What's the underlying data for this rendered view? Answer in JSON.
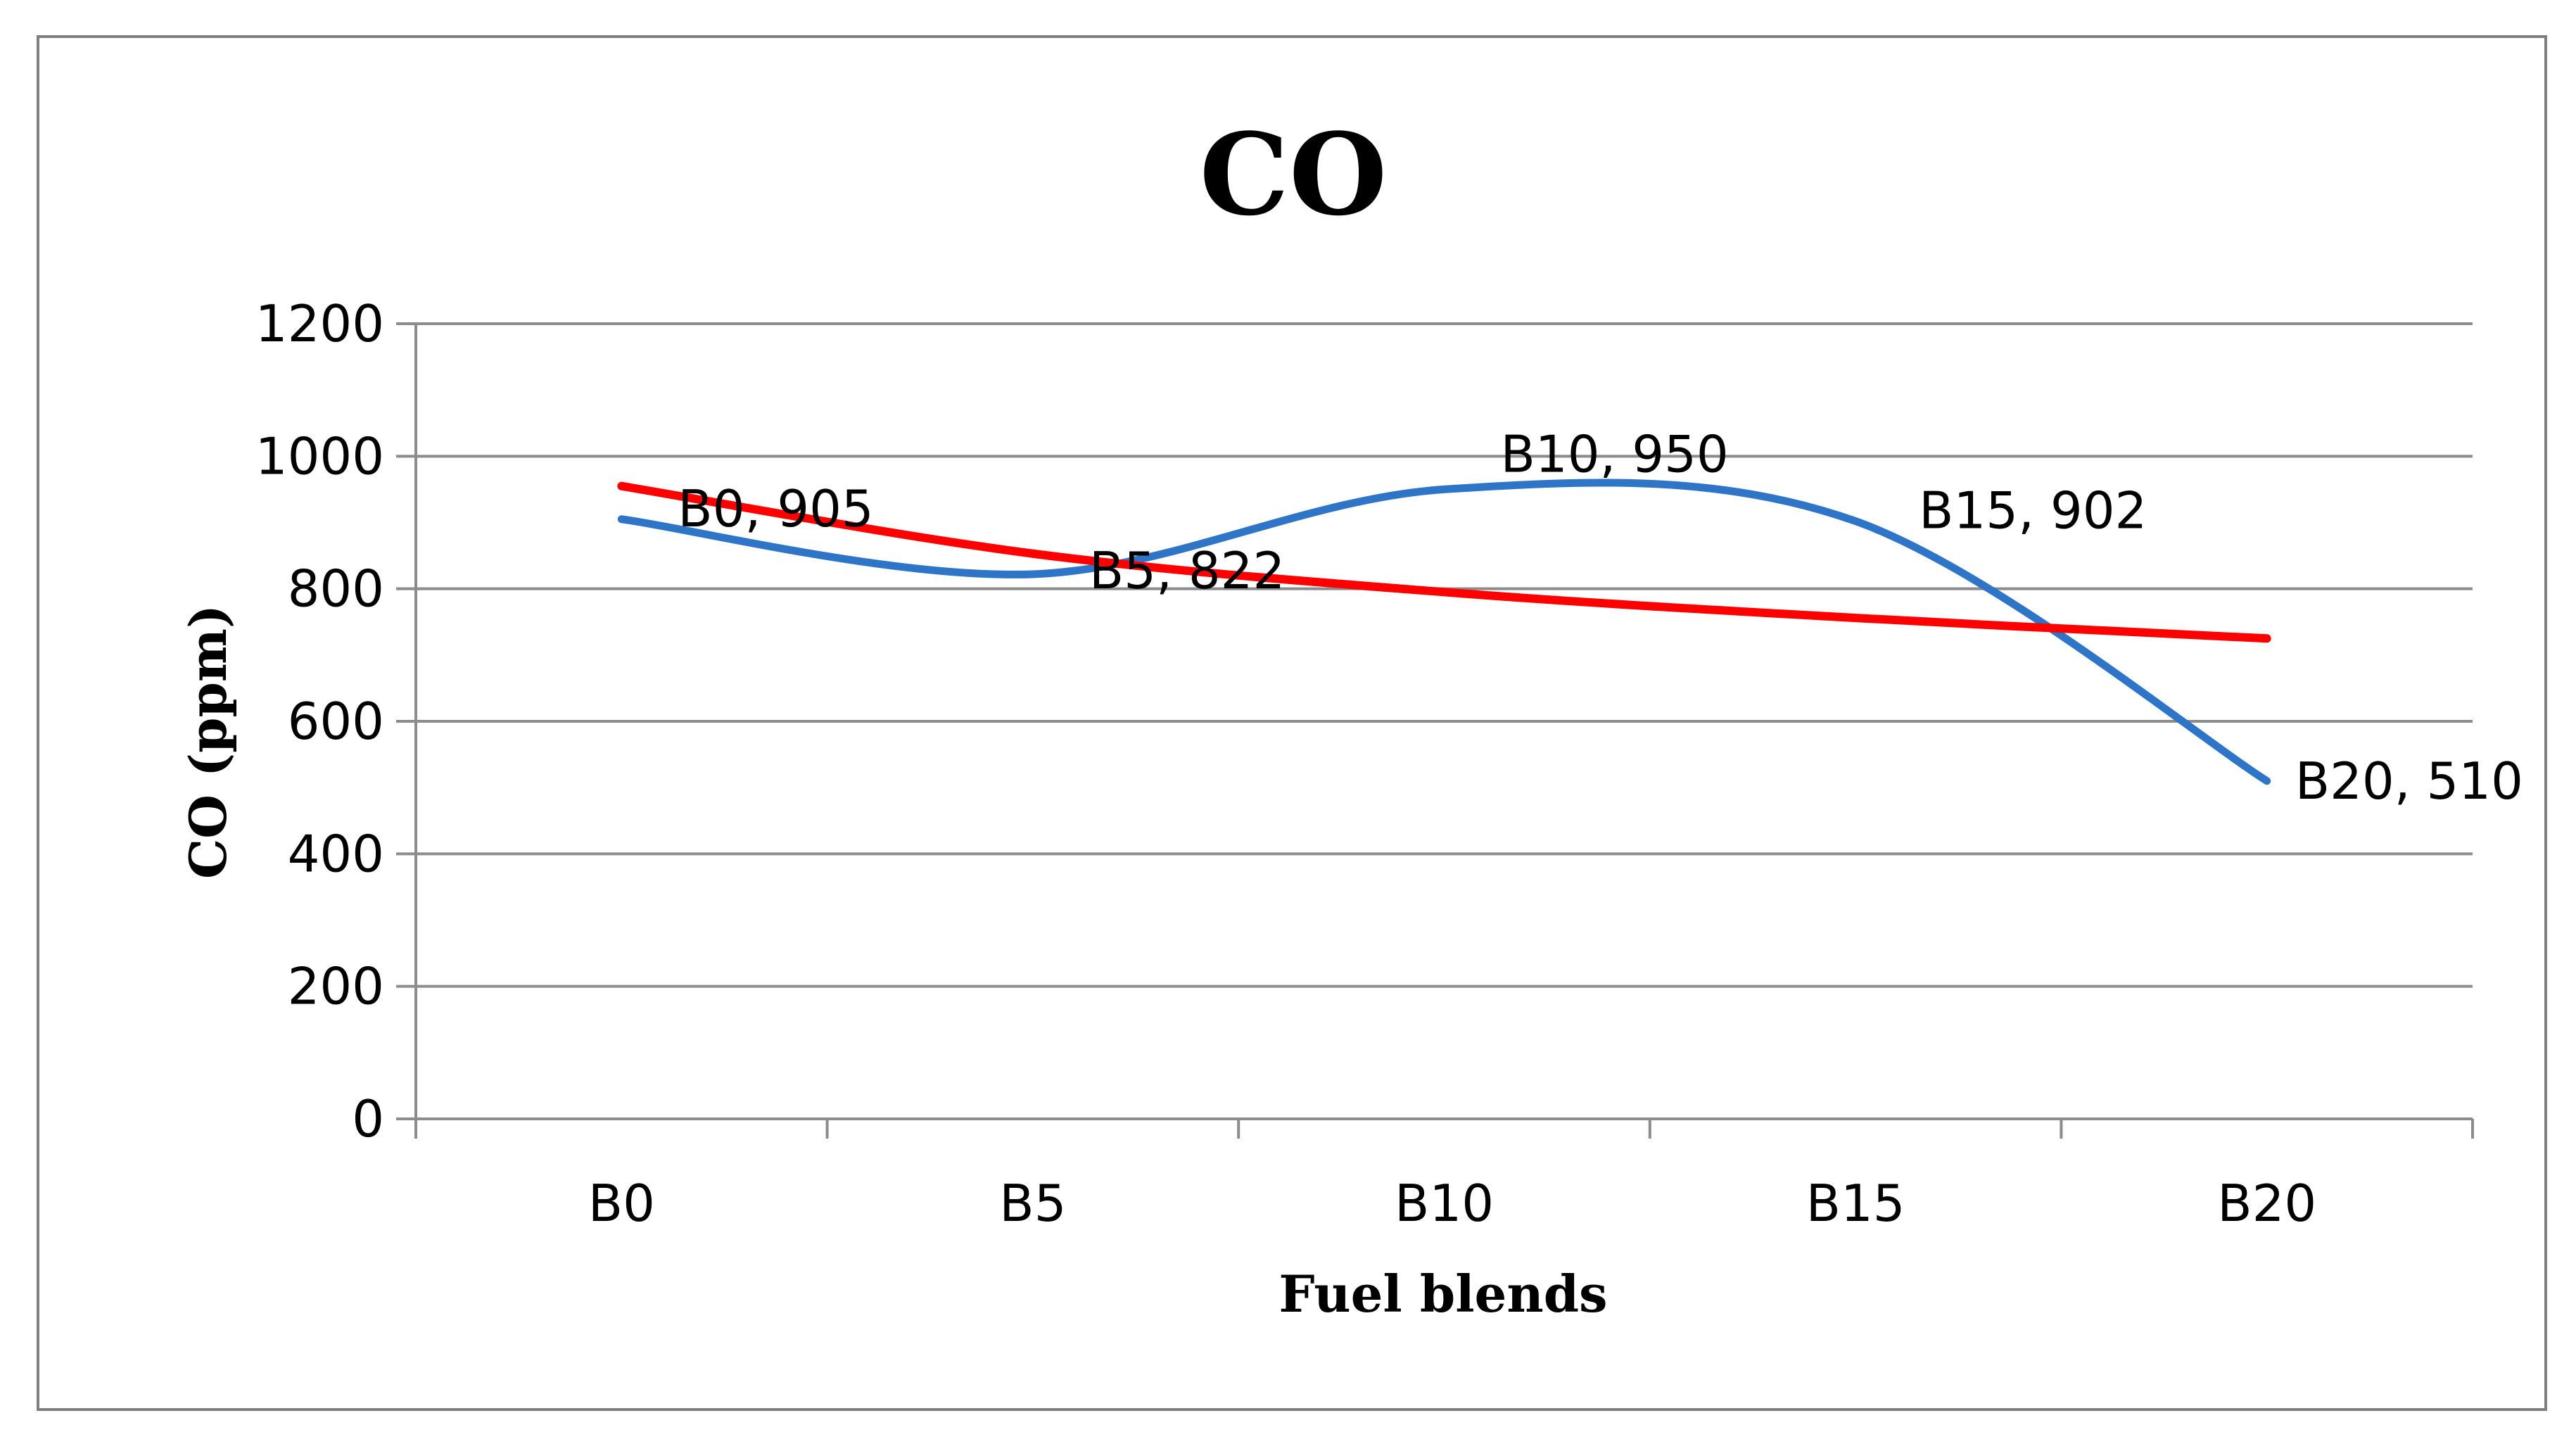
{
  "chart_data": {
    "type": "line",
    "title": "CO",
    "xlabel": "Fuel blends",
    "ylabel": "CO (ppm)",
    "categories": [
      "B0",
      "B5",
      "B10",
      "B15",
      "B20"
    ],
    "ylim": [
      0,
      1200
    ],
    "yticks": [
      0,
      200,
      400,
      600,
      800,
      1000,
      1200
    ],
    "grid": true,
    "series": [
      {
        "name": "CO",
        "values": [
          905,
          822,
          950,
          902,
          510
        ],
        "color": "#2e75c8",
        "smooth": true,
        "data_labels": [
          "B0, 905",
          "B5, 822",
          "B10, 950",
          "B15, 902",
          "B20, 510"
        ]
      },
      {
        "name": "Trendline",
        "values": [
          955,
          853,
          795,
          756,
          725
        ],
        "color": "#ff0000",
        "smooth": true
      }
    ]
  }
}
